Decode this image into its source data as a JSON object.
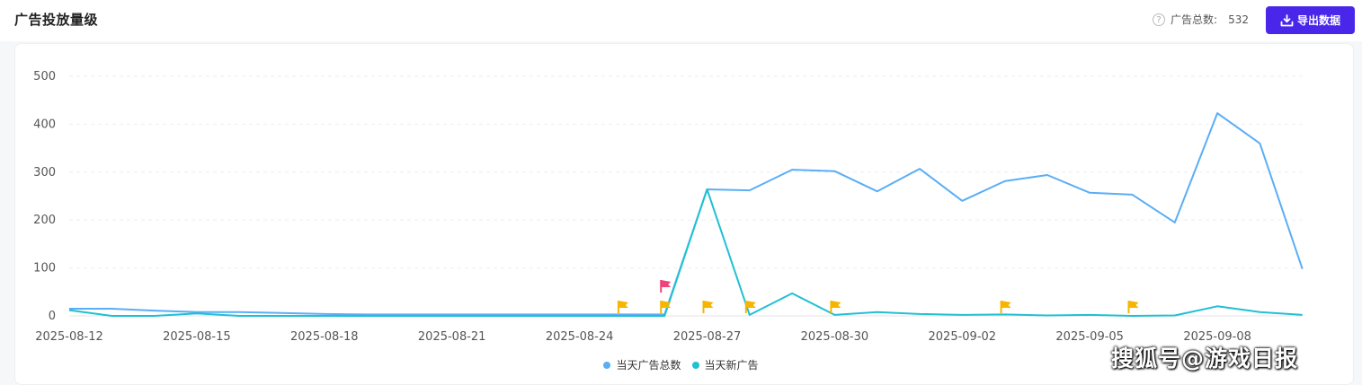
{
  "header": {
    "title": "广告投放量级",
    "stat_label": "广告总数:",
    "stat_value": "532",
    "export_label": "导出数据"
  },
  "colors": {
    "series_total": "#5aaef5",
    "series_new": "#20c0d3",
    "accent": "#4926e9",
    "flag_yellow": "#f6b500",
    "flag_red": "#f0437a"
  },
  "chart_data": {
    "type": "line",
    "x": [
      "2025-08-12",
      "2025-08-13",
      "2025-08-14",
      "2025-08-15",
      "2025-08-16",
      "2025-08-17",
      "2025-08-18",
      "2025-08-19",
      "2025-08-20",
      "2025-08-21",
      "2025-08-22",
      "2025-08-23",
      "2025-08-24",
      "2025-08-25",
      "2025-08-26",
      "2025-08-27",
      "2025-08-28",
      "2025-08-29",
      "2025-08-30",
      "2025-08-31",
      "2025-09-01",
      "2025-09-02",
      "2025-09-03",
      "2025-09-04",
      "2025-09-05",
      "2025-09-06",
      "2025-09-07",
      "2025-09-08",
      "2025-09-09",
      "2025-09-10"
    ],
    "x_tick_labels": [
      "2025-08-12",
      "2025-08-15",
      "2025-08-18",
      "2025-08-21",
      "2025-08-24",
      "2025-08-27",
      "2025-08-30",
      "2025-09-02",
      "2025-09-05",
      "2025-09-08"
    ],
    "y_ticks": [
      0,
      100,
      200,
      300,
      400,
      500
    ],
    "ylim": [
      0,
      500
    ],
    "grid": true,
    "legend_position": "bottom-center",
    "series": [
      {
        "name": "当天广告总数",
        "values": [
          15,
          15,
          11,
          8,
          8,
          6,
          4,
          3,
          3,
          3,
          3,
          3,
          3,
          3,
          3,
          264,
          262,
          305,
          302,
          260,
          307,
          240,
          281,
          294,
          257,
          253,
          195,
          423,
          360,
          98
        ]
      },
      {
        "name": "当天新广告",
        "values": [
          12,
          0,
          0,
          5,
          0,
          0,
          0,
          0,
          0,
          0,
          0,
          0,
          0,
          0,
          0,
          264,
          2,
          47,
          2,
          8,
          4,
          2,
          3,
          1,
          2,
          0,
          1,
          20,
          8,
          2
        ]
      }
    ],
    "flags": [
      {
        "date": "2025-08-25",
        "color": "yellow"
      },
      {
        "date": "2025-08-26",
        "color": "yellow"
      },
      {
        "date": "2025-08-26",
        "color": "red"
      },
      {
        "date": "2025-08-27",
        "color": "yellow"
      },
      {
        "date": "2025-08-28",
        "color": "yellow"
      },
      {
        "date": "2025-08-30",
        "color": "yellow"
      },
      {
        "date": "2025-09-03",
        "color": "yellow"
      },
      {
        "date": "2025-09-06",
        "color": "yellow"
      }
    ]
  },
  "watermark": "搜狐号@游戏日报"
}
